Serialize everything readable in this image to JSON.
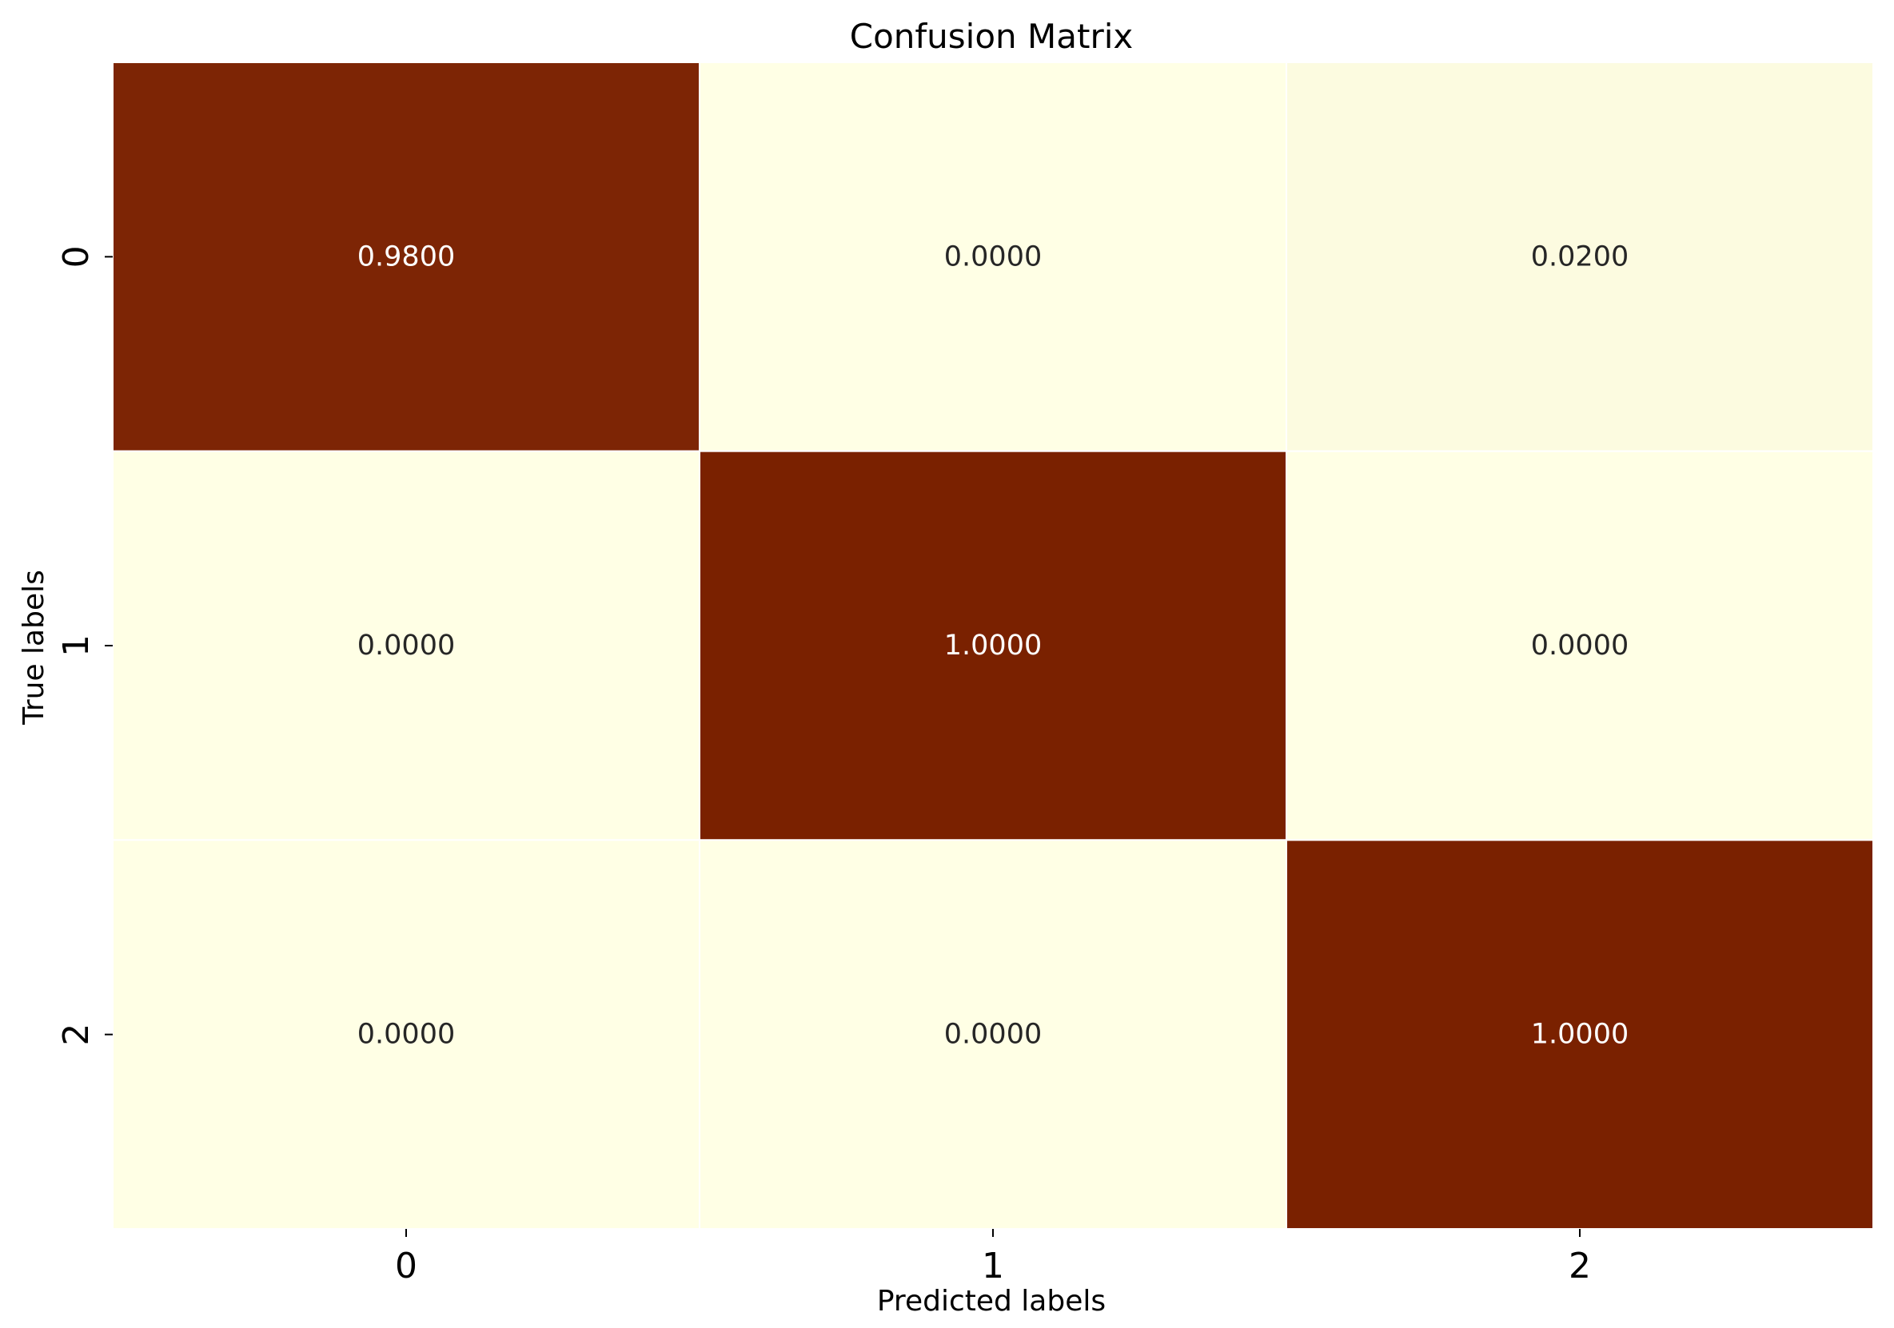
{
  "chart_data": {
    "type": "heatmap",
    "title": "Confusion Matrix",
    "xlabel": "Predicted labels",
    "ylabel": "True labels",
    "x_categories": [
      "0",
      "1",
      "2"
    ],
    "y_categories": [
      "0",
      "1",
      "2"
    ],
    "values": [
      [
        0.98,
        0.0,
        0.02
      ],
      [
        0.0,
        1.0,
        0.0
      ],
      [
        0.0,
        0.0,
        1.0
      ]
    ],
    "value_labels": [
      [
        "0.9800",
        "0.0000",
        "0.0200"
      ],
      [
        "0.0000",
        "1.0000",
        "0.0000"
      ],
      [
        "0.0000",
        "0.0000",
        "1.0000"
      ]
    ],
    "colormap": "YlOrBr",
    "color_low": "#ffffe5",
    "color_high": "#7a2100",
    "vmin": 0,
    "vmax": 1,
    "colorbar": false,
    "grid": false
  }
}
